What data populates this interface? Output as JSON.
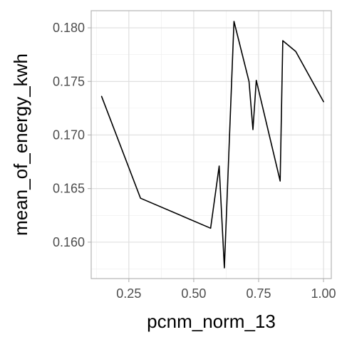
{
  "chart_data": {
    "type": "line",
    "title": "",
    "xlabel": "pcnm_norm_13",
    "ylabel": "mean_of_energy_kwh",
    "xlim": [
      0.105,
      1.03
    ],
    "ylim": [
      0.1566,
      0.1816
    ],
    "x_ticks": [
      0.25,
      0.5,
      0.75,
      1.0
    ],
    "x_tick_labels": [
      "0.25",
      "0.50",
      "0.75",
      "1.00"
    ],
    "y_ticks": [
      0.16,
      0.165,
      0.17,
      0.175,
      0.18
    ],
    "y_tick_labels": [
      "0.160",
      "0.165",
      "0.170",
      "0.175",
      "0.180"
    ],
    "grid": true,
    "series": [
      {
        "x": [
          0.145,
          0.295,
          0.565,
          0.598,
          0.618,
          0.655,
          0.713,
          0.728,
          0.741,
          0.833,
          0.843,
          0.893,
          1.0
        ],
        "y": [
          0.1736,
          0.1641,
          0.1613,
          0.1671,
          0.1576,
          0.1806,
          0.175,
          0.1705,
          0.1751,
          0.1657,
          0.1788,
          0.1778,
          0.1731
        ]
      }
    ]
  }
}
